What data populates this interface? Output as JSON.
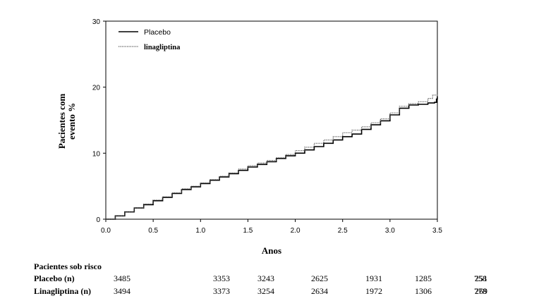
{
  "chart_data": {
    "type": "line",
    "xlabel": "Anos",
    "ylabel_lines": [
      "Pacientes com",
      "evento %"
    ],
    "xlim": [
      0,
      3.5
    ],
    "ylim": [
      0,
      30
    ],
    "x_ticks": [
      0.0,
      0.5,
      1.0,
      1.5,
      2.0,
      2.5,
      3.0,
      3.5
    ],
    "x_tick_labels": [
      "0.0",
      "0.5",
      "1.0",
      "1.5",
      "2.0",
      "2.5",
      "3.0",
      "3.5"
    ],
    "y_ticks": [
      0,
      10,
      20,
      30
    ],
    "y_tick_labels": [
      "0",
      "10",
      "20",
      "30"
    ],
    "grid": false,
    "legend_position": "top-left",
    "series": [
      {
        "name": "Placebo",
        "style": "solid",
        "color": "#000000",
        "points": [
          [
            0,
            0
          ],
          [
            0.1,
            0.5
          ],
          [
            0.2,
            1.1
          ],
          [
            0.3,
            1.7
          ],
          [
            0.4,
            2.2
          ],
          [
            0.5,
            2.8
          ],
          [
            0.6,
            3.3
          ],
          [
            0.7,
            3.9
          ],
          [
            0.8,
            4.5
          ],
          [
            0.9,
            4.9
          ],
          [
            1.0,
            5.4
          ],
          [
            1.1,
            5.9
          ],
          [
            1.2,
            6.4
          ],
          [
            1.3,
            6.9
          ],
          [
            1.4,
            7.4
          ],
          [
            1.5,
            7.9
          ],
          [
            1.6,
            8.3
          ],
          [
            1.7,
            8.7
          ],
          [
            1.8,
            9.2
          ],
          [
            1.9,
            9.6
          ],
          [
            2.0,
            10.0
          ],
          [
            2.1,
            10.5
          ],
          [
            2.2,
            11.0
          ],
          [
            2.3,
            11.5
          ],
          [
            2.4,
            12.0
          ],
          [
            2.5,
            12.5
          ],
          [
            2.6,
            12.9
          ],
          [
            2.7,
            13.6
          ],
          [
            2.8,
            14.3
          ],
          [
            2.9,
            14.9
          ],
          [
            3.0,
            15.8
          ],
          [
            3.1,
            16.8
          ],
          [
            3.2,
            17.3
          ],
          [
            3.3,
            17.4
          ],
          [
            3.4,
            17.6
          ],
          [
            3.47,
            17.7
          ],
          [
            3.49,
            18.2
          ],
          [
            3.5,
            18.6
          ]
        ]
      },
      {
        "name": "linagliptina",
        "style": "dotted",
        "color": "#555555",
        "points": [
          [
            0,
            0
          ],
          [
            0.1,
            0.5
          ],
          [
            0.2,
            1.1
          ],
          [
            0.3,
            1.7
          ],
          [
            0.4,
            2.3
          ],
          [
            0.5,
            2.9
          ],
          [
            0.6,
            3.4
          ],
          [
            0.7,
            4.0
          ],
          [
            0.8,
            4.6
          ],
          [
            0.9,
            5.0
          ],
          [
            1.0,
            5.5
          ],
          [
            1.1,
            6.0
          ],
          [
            1.2,
            6.5
          ],
          [
            1.3,
            7.0
          ],
          [
            1.4,
            7.6
          ],
          [
            1.5,
            8.1
          ],
          [
            1.6,
            8.5
          ],
          [
            1.7,
            8.9
          ],
          [
            1.8,
            9.3
          ],
          [
            1.9,
            9.8
          ],
          [
            2.0,
            10.4
          ],
          [
            2.1,
            10.9
          ],
          [
            2.2,
            11.5
          ],
          [
            2.3,
            12.0
          ],
          [
            2.4,
            12.5
          ],
          [
            2.5,
            13.1
          ],
          [
            2.6,
            13.5
          ],
          [
            2.7,
            14.0
          ],
          [
            2.8,
            14.6
          ],
          [
            2.9,
            15.2
          ],
          [
            3.0,
            16.1
          ],
          [
            3.1,
            17.1
          ],
          [
            3.2,
            17.5
          ],
          [
            3.3,
            17.8
          ],
          [
            3.4,
            18.3
          ],
          [
            3.45,
            18.8
          ],
          [
            3.5,
            19.0
          ]
        ]
      }
    ]
  },
  "risk_table": {
    "title": "Pacientes sob risco",
    "rows": [
      {
        "label": "Placebo (n)",
        "values": [
          "3485",
          "3353",
          "3243",
          "2625",
          "1931",
          "1285",
          "758",
          "251"
        ]
      },
      {
        "label": "Linagliptina (n)",
        "values": [
          "3494",
          "3373",
          "3254",
          "2634",
          "1972",
          "1306",
          "778",
          "269"
        ]
      }
    ]
  }
}
